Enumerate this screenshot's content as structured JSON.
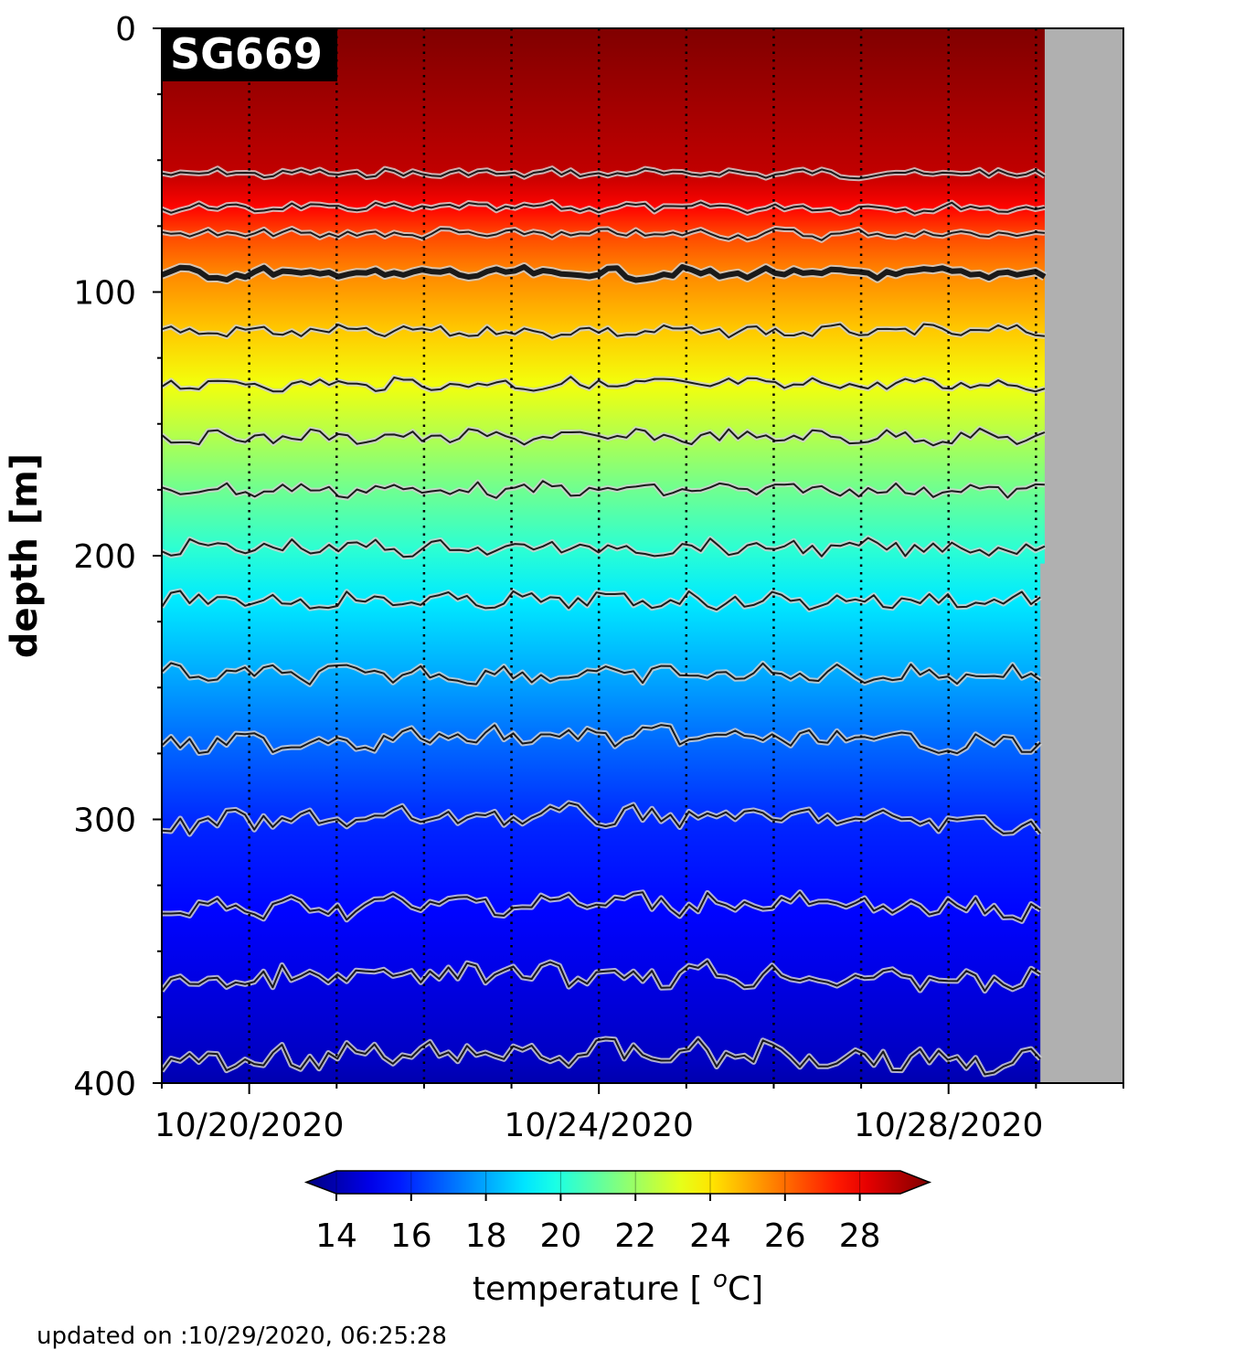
{
  "chart_data": {
    "type": "heatmap",
    "glider_id": "SG669",
    "ylabel": "depth [m]",
    "y_ticks": [
      "0",
      "100",
      "200",
      "300",
      "400"
    ],
    "y_tick_values": [
      0,
      100,
      200,
      300,
      400
    ],
    "ylim": [
      400,
      0
    ],
    "x_ticks": [
      "10/20/2020",
      "10/24/2020",
      "10/28/2020"
    ],
    "x_tick_days": [
      1,
      5,
      9
    ],
    "x_range_days": [
      0,
      11.0
    ],
    "data_end_day": 10.1,
    "gap_depth_from_day": [
      10.05,
      203
    ],
    "colorbar": {
      "label_text": "temperature [ ",
      "label_sup": "o",
      "label_unit": "C]",
      "ticks": [
        "14",
        "16",
        "18",
        "20",
        "22",
        "24",
        "26",
        "28"
      ],
      "tick_values": [
        14,
        16,
        18,
        20,
        22,
        24,
        26,
        28
      ],
      "range": [
        13.5,
        29
      ],
      "extend": "both",
      "colormap": "jet"
    },
    "isotherm_depths_m": [
      {
        "temp": 28,
        "depth": 55
      },
      {
        "temp": 27,
        "depth": 68
      },
      {
        "temp": 26,
        "depth": 78
      },
      {
        "temp": 25,
        "depth": 93,
        "bold": true
      },
      {
        "temp": 24,
        "depth": 115
      },
      {
        "temp": 23,
        "depth": 135
      },
      {
        "temp": 22,
        "depth": 155
      },
      {
        "temp": 21,
        "depth": 175
      },
      {
        "temp": 20,
        "depth": 197
      },
      {
        "temp": 19,
        "depth": 217
      },
      {
        "temp": 18,
        "depth": 245
      },
      {
        "temp": 17,
        "depth": 272
      },
      {
        "temp": 16,
        "depth": 302
      },
      {
        "temp": 15.5,
        "depth": 335
      },
      {
        "temp": 15,
        "depth": 362
      },
      {
        "temp": 14.5,
        "depth": 392
      }
    ]
  },
  "footer_text": "updated on :10/29/2020, 06:25:28",
  "colors": {
    "missing": "#b0b0b0",
    "isotherm_outline": "#cfcfcf",
    "isotherm_line": "#1a1a1a"
  }
}
